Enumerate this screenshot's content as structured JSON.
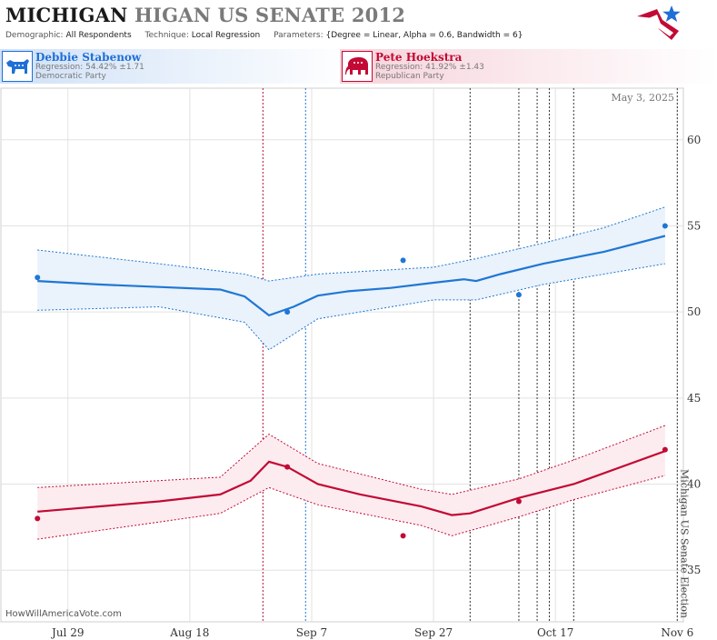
{
  "header": {
    "title_a": "MICHIGAN",
    "title_b": "HIGAN US SENATE 2012",
    "demographic_label": "Demographic:",
    "demographic_value": "All Respondents",
    "technique_label": "Technique:",
    "technique_value": "Local Regression",
    "parameters_label": "Parameters:",
    "parameters_value": "{Degree = Linear, Alpha = 0.6, Bandwidth = 6}"
  },
  "candidates": {
    "dem": {
      "name": "Debbie Stabenow",
      "regression": "Regression: 54.42% ±1.71",
      "party": "Democratic Party",
      "color": "#1f77d4"
    },
    "rep": {
      "name": "Pete Hoekstra",
      "regression": "Regression: 41.92% ±1.43",
      "party": "Republican Party",
      "color": "#c20a35"
    }
  },
  "chart_data": {
    "type": "line",
    "date_label": "May 3, 2025",
    "watermark": "HowWillAmericaVote.com",
    "election_label": "Michigan US Senate Election",
    "xlim": [
      "2012-07-18",
      "2012-11-07"
    ],
    "ylim": [
      32,
      63
    ],
    "x_ticks": [
      {
        "date": "2012-07-29",
        "label": "Jul 29"
      },
      {
        "date": "2012-08-18",
        "label": "Aug 18"
      },
      {
        "date": "2012-09-07",
        "label": "Sep 7"
      },
      {
        "date": "2012-09-27",
        "label": "Sep 27"
      },
      {
        "date": "2012-10-17",
        "label": "Oct 17"
      },
      {
        "date": "2012-11-06",
        "label": "Nov 6"
      }
    ],
    "y_ticks": [
      35,
      40,
      45,
      50,
      55,
      60
    ],
    "grid": true,
    "event_lines": [
      {
        "date": "2012-08-30",
        "color": "#c20a35"
      },
      {
        "date": "2012-09-06",
        "color": "#1f77d4"
      },
      {
        "date": "2012-10-03",
        "color": "#333333"
      },
      {
        "date": "2012-10-11",
        "color": "#333333"
      },
      {
        "date": "2012-10-14",
        "color": "#333333"
      },
      {
        "date": "2012-10-16",
        "color": "#333333"
      },
      {
        "date": "2012-10-20",
        "color": "#333333"
      },
      {
        "date": "2012-11-06",
        "color": "#333333"
      }
    ],
    "series": [
      {
        "name": "Debbie Stabenow",
        "color": "#1f77d4",
        "band_color": "#eaf2fb",
        "polls": [
          {
            "date": "2012-07-24",
            "value": 52.0
          },
          {
            "date": "2012-09-03",
            "value": 50.0
          },
          {
            "date": "2012-09-22",
            "value": 53.0
          },
          {
            "date": "2012-10-11",
            "value": 51.0
          },
          {
            "date": "2012-11-04",
            "value": 55.0
          }
        ],
        "trend": [
          {
            "date": "2012-07-24",
            "value": 51.8
          },
          {
            "date": "2012-08-03",
            "value": 51.6
          },
          {
            "date": "2012-08-13",
            "value": 51.45
          },
          {
            "date": "2012-08-23",
            "value": 51.3
          },
          {
            "date": "2012-08-27",
            "value": 50.9
          },
          {
            "date": "2012-08-31",
            "value": 49.8
          },
          {
            "date": "2012-09-04",
            "value": 50.3
          },
          {
            "date": "2012-09-08",
            "value": 50.95
          },
          {
            "date": "2012-09-13",
            "value": 51.2
          },
          {
            "date": "2012-09-20",
            "value": 51.4
          },
          {
            "date": "2012-09-27",
            "value": 51.7
          },
          {
            "date": "2012-10-02",
            "value": 51.9
          },
          {
            "date": "2012-10-04",
            "value": 51.8
          },
          {
            "date": "2012-10-08",
            "value": 52.2
          },
          {
            "date": "2012-10-15",
            "value": 52.8
          },
          {
            "date": "2012-10-25",
            "value": 53.5
          },
          {
            "date": "2012-11-04",
            "value": 54.42
          }
        ],
        "upper": [
          {
            "date": "2012-07-24",
            "value": 53.6
          },
          {
            "date": "2012-08-13",
            "value": 52.8
          },
          {
            "date": "2012-08-27",
            "value": 52.2
          },
          {
            "date": "2012-08-31",
            "value": 51.8
          },
          {
            "date": "2012-09-08",
            "value": 52.2
          },
          {
            "date": "2012-09-27",
            "value": 52.6
          },
          {
            "date": "2012-10-04",
            "value": 53.1
          },
          {
            "date": "2012-10-15",
            "value": 54.0
          },
          {
            "date": "2012-10-25",
            "value": 54.9
          },
          {
            "date": "2012-11-04",
            "value": 56.1
          }
        ],
        "lower": [
          {
            "date": "2012-07-24",
            "value": 50.1
          },
          {
            "date": "2012-08-13",
            "value": 50.3
          },
          {
            "date": "2012-08-27",
            "value": 49.4
          },
          {
            "date": "2012-08-31",
            "value": 47.8
          },
          {
            "date": "2012-09-08",
            "value": 49.6
          },
          {
            "date": "2012-09-27",
            "value": 50.7
          },
          {
            "date": "2012-10-04",
            "value": 50.7
          },
          {
            "date": "2012-10-15",
            "value": 51.6
          },
          {
            "date": "2012-10-25",
            "value": 52.2
          },
          {
            "date": "2012-11-04",
            "value": 52.8
          }
        ]
      },
      {
        "name": "Pete Hoekstra",
        "color": "#c20a35",
        "band_color": "#fdecef",
        "polls": [
          {
            "date": "2012-07-24",
            "value": 38.0
          },
          {
            "date": "2012-09-03",
            "value": 41.0
          },
          {
            "date": "2012-09-22",
            "value": 37.0
          },
          {
            "date": "2012-10-11",
            "value": 39.0
          },
          {
            "date": "2012-11-04",
            "value": 42.0
          }
        ],
        "trend": [
          {
            "date": "2012-07-24",
            "value": 38.4
          },
          {
            "date": "2012-08-13",
            "value": 39.0
          },
          {
            "date": "2012-08-23",
            "value": 39.4
          },
          {
            "date": "2012-08-28",
            "value": 40.2
          },
          {
            "date": "2012-08-31",
            "value": 41.3
          },
          {
            "date": "2012-09-03",
            "value": 41.0
          },
          {
            "date": "2012-09-08",
            "value": 40.0
          },
          {
            "date": "2012-09-15",
            "value": 39.4
          },
          {
            "date": "2012-09-25",
            "value": 38.7
          },
          {
            "date": "2012-09-30",
            "value": 38.2
          },
          {
            "date": "2012-10-03",
            "value": 38.3
          },
          {
            "date": "2012-10-11",
            "value": 39.2
          },
          {
            "date": "2012-10-20",
            "value": 40.0
          },
          {
            "date": "2012-11-04",
            "value": 41.92
          }
        ],
        "upper": [
          {
            "date": "2012-07-24",
            "value": 39.8
          },
          {
            "date": "2012-08-23",
            "value": 40.4
          },
          {
            "date": "2012-08-31",
            "value": 42.9
          },
          {
            "date": "2012-09-08",
            "value": 41.2
          },
          {
            "date": "2012-09-25",
            "value": 39.7
          },
          {
            "date": "2012-09-30",
            "value": 39.4
          },
          {
            "date": "2012-10-11",
            "value": 40.3
          },
          {
            "date": "2012-10-20",
            "value": 41.4
          },
          {
            "date": "2012-11-04",
            "value": 43.4
          }
        ],
        "lower": [
          {
            "date": "2012-07-24",
            "value": 36.8
          },
          {
            "date": "2012-08-23",
            "value": 38.3
          },
          {
            "date": "2012-08-31",
            "value": 39.8
          },
          {
            "date": "2012-09-08",
            "value": 38.8
          },
          {
            "date": "2012-09-25",
            "value": 37.6
          },
          {
            "date": "2012-09-30",
            "value": 37.0
          },
          {
            "date": "2012-10-11",
            "value": 38.1
          },
          {
            "date": "2012-10-20",
            "value": 39.1
          },
          {
            "date": "2012-11-04",
            "value": 40.5
          }
        ]
      }
    ]
  }
}
